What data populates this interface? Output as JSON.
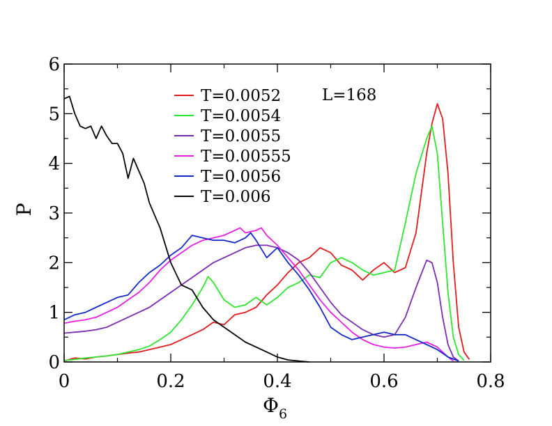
{
  "chart_data": {
    "type": "line",
    "xlabel": "Φ",
    "xlabel_subscript": "6",
    "ylabel": "P",
    "xlim": [
      0,
      0.8
    ],
    "ylim": [
      0,
      6
    ],
    "xticks": [
      "0",
      "0.2",
      "0.4",
      "0.6",
      "0.8"
    ],
    "yticks": [
      "0",
      "1",
      "2",
      "3",
      "4",
      "5",
      "6"
    ],
    "annotation": "L=168",
    "legend_position": "top-center",
    "series": [
      {
        "name": "T=0.0052",
        "color": "#e31a1c",
        "x": [
          0,
          0.02,
          0.04,
          0.06,
          0.08,
          0.1,
          0.12,
          0.14,
          0.16,
          0.18,
          0.2,
          0.22,
          0.24,
          0.26,
          0.28,
          0.3,
          0.32,
          0.34,
          0.36,
          0.38,
          0.4,
          0.42,
          0.44,
          0.46,
          0.48,
          0.5,
          0.52,
          0.54,
          0.56,
          0.58,
          0.6,
          0.62,
          0.64,
          0.66,
          0.68,
          0.69,
          0.7,
          0.71,
          0.72,
          0.73,
          0.74,
          0.75,
          0.76
        ],
        "y": [
          0.02,
          0.08,
          0.06,
          0.1,
          0.12,
          0.15,
          0.18,
          0.2,
          0.25,
          0.3,
          0.35,
          0.45,
          0.55,
          0.65,
          0.8,
          0.75,
          0.95,
          1.0,
          1.1,
          1.35,
          1.55,
          1.8,
          2.0,
          2.1,
          2.3,
          2.2,
          1.95,
          1.85,
          1.65,
          1.85,
          2.0,
          1.8,
          1.9,
          2.6,
          4.2,
          4.8,
          5.2,
          4.9,
          3.8,
          2.0,
          0.7,
          0.2,
          0.05
        ]
      },
      {
        "name": "T=0.0054",
        "color": "#2ee62e",
        "x": [
          0,
          0.02,
          0.04,
          0.06,
          0.08,
          0.1,
          0.12,
          0.14,
          0.16,
          0.18,
          0.2,
          0.22,
          0.24,
          0.26,
          0.27,
          0.28,
          0.3,
          0.32,
          0.34,
          0.36,
          0.38,
          0.4,
          0.42,
          0.44,
          0.46,
          0.48,
          0.5,
          0.52,
          0.54,
          0.56,
          0.58,
          0.6,
          0.62,
          0.64,
          0.66,
          0.68,
          0.69,
          0.7,
          0.71,
          0.72,
          0.73,
          0.74,
          0.75
        ],
        "y": [
          0.03,
          0.05,
          0.08,
          0.1,
          0.12,
          0.15,
          0.2,
          0.25,
          0.32,
          0.45,
          0.6,
          0.85,
          1.15,
          1.5,
          1.72,
          1.6,
          1.25,
          1.1,
          1.15,
          1.3,
          1.15,
          1.3,
          1.5,
          1.6,
          1.75,
          1.7,
          2.0,
          2.1,
          2.0,
          1.85,
          1.75,
          1.8,
          1.85,
          2.8,
          3.8,
          4.5,
          4.75,
          4.2,
          2.8,
          1.4,
          0.5,
          0.15,
          0.03
        ]
      },
      {
        "name": "T=0.0055",
        "color": "#7b2ab5",
        "x": [
          0,
          0.02,
          0.04,
          0.06,
          0.08,
          0.1,
          0.12,
          0.14,
          0.16,
          0.18,
          0.2,
          0.22,
          0.24,
          0.26,
          0.28,
          0.3,
          0.32,
          0.34,
          0.36,
          0.38,
          0.4,
          0.42,
          0.44,
          0.46,
          0.48,
          0.5,
          0.52,
          0.54,
          0.56,
          0.58,
          0.6,
          0.62,
          0.64,
          0.66,
          0.68,
          0.69,
          0.7,
          0.71,
          0.72,
          0.73,
          0.74
        ],
        "y": [
          0.58,
          0.6,
          0.62,
          0.65,
          0.7,
          0.8,
          0.9,
          1.0,
          1.1,
          1.25,
          1.4,
          1.55,
          1.7,
          1.85,
          2.0,
          2.1,
          2.2,
          2.3,
          2.35,
          2.35,
          2.3,
          2.2,
          2.05,
          1.8,
          1.5,
          1.2,
          0.95,
          0.8,
          0.65,
          0.55,
          0.5,
          0.55,
          0.9,
          1.5,
          2.05,
          2.0,
          1.6,
          0.9,
          0.35,
          0.1,
          0.02
        ]
      },
      {
        "name": "T=0.00555",
        "color": "#e61ee6",
        "x": [
          0,
          0.02,
          0.04,
          0.06,
          0.08,
          0.1,
          0.12,
          0.14,
          0.16,
          0.18,
          0.2,
          0.22,
          0.24,
          0.26,
          0.28,
          0.3,
          0.32,
          0.33,
          0.34,
          0.36,
          0.37,
          0.38,
          0.4,
          0.42,
          0.44,
          0.46,
          0.48,
          0.5,
          0.52,
          0.54,
          0.56,
          0.58,
          0.6,
          0.62,
          0.64,
          0.66,
          0.68,
          0.7,
          0.72,
          0.73
        ],
        "y": [
          0.78,
          0.82,
          0.85,
          0.9,
          1.0,
          1.1,
          1.25,
          1.4,
          1.6,
          1.85,
          2.05,
          2.2,
          2.35,
          2.45,
          2.5,
          2.55,
          2.65,
          2.7,
          2.6,
          2.65,
          2.7,
          2.55,
          2.35,
          2.1,
          1.85,
          1.55,
          1.25,
          1.0,
          0.8,
          0.6,
          0.45,
          0.35,
          0.3,
          0.28,
          0.3,
          0.35,
          0.4,
          0.3,
          0.1,
          0.02
        ]
      },
      {
        "name": "T=0.0056",
        "color": "#1428c8",
        "x": [
          0,
          0.02,
          0.04,
          0.06,
          0.08,
          0.1,
          0.12,
          0.14,
          0.16,
          0.18,
          0.2,
          0.22,
          0.24,
          0.26,
          0.28,
          0.3,
          0.32,
          0.34,
          0.35,
          0.36,
          0.38,
          0.4,
          0.42,
          0.44,
          0.46,
          0.48,
          0.5,
          0.52,
          0.54,
          0.56,
          0.58,
          0.6,
          0.62,
          0.64,
          0.66,
          0.68,
          0.7,
          0.72,
          0.74
        ],
        "y": [
          0.85,
          0.95,
          1.0,
          1.1,
          1.2,
          1.3,
          1.35,
          1.6,
          1.8,
          1.95,
          2.15,
          2.3,
          2.55,
          2.5,
          2.45,
          2.45,
          2.4,
          2.5,
          2.6,
          2.45,
          2.1,
          2.3,
          2.0,
          1.75,
          1.45,
          1.1,
          0.7,
          0.55,
          0.45,
          0.5,
          0.55,
          0.6,
          0.55,
          0.55,
          0.45,
          0.35,
          0.25,
          0.1,
          0.02
        ]
      },
      {
        "name": "T=0.006",
        "color": "#000000",
        "x": [
          0,
          0.01,
          0.02,
          0.03,
          0.04,
          0.05,
          0.06,
          0.07,
          0.08,
          0.09,
          0.1,
          0.11,
          0.12,
          0.13,
          0.14,
          0.15,
          0.16,
          0.18,
          0.2,
          0.22,
          0.24,
          0.26,
          0.28,
          0.3,
          0.32,
          0.34,
          0.36,
          0.38,
          0.4,
          0.42,
          0.44,
          0.46
        ],
        "y": [
          5.3,
          5.35,
          5.0,
          4.75,
          4.7,
          4.75,
          4.5,
          4.75,
          4.55,
          4.4,
          4.4,
          4.2,
          3.7,
          4.1,
          3.85,
          3.6,
          3.2,
          2.7,
          2.0,
          1.55,
          1.45,
          1.1,
          0.85,
          0.7,
          0.55,
          0.4,
          0.3,
          0.2,
          0.1,
          0.04,
          0.02,
          0.0
        ]
      }
    ]
  }
}
